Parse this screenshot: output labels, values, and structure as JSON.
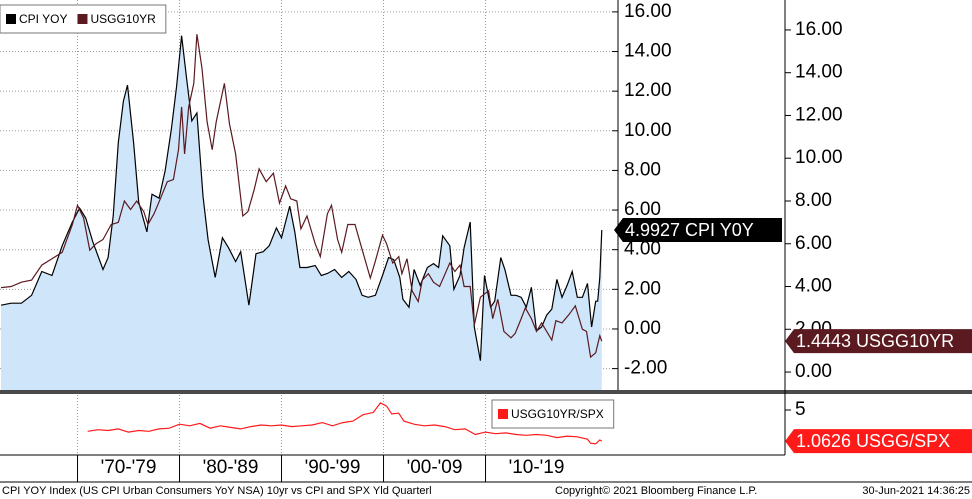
{
  "chart_data": [
    {
      "type": "line",
      "xlim": [
        1962.4,
        2022.4
      ],
      "ylim": [
        -3.08,
        16.6
      ],
      "y2lim": [
        -0.84,
        17.4
      ],
      "yticks": [
        {
          "value": 16,
          "label": "16.00"
        },
        {
          "value": 14,
          "label": "14.00"
        },
        {
          "value": 12,
          "label": "12.00"
        },
        {
          "value": 10,
          "label": "10.00"
        },
        {
          "value": 8,
          "label": "8.00"
        },
        {
          "value": 6,
          "label": "6.00"
        },
        {
          "value": 4,
          "label": "4.00"
        },
        {
          "value": 2,
          "label": "2.00"
        },
        {
          "value": 0,
          "label": "0.00"
        },
        {
          "value": -2,
          "label": "-2.00"
        }
      ],
      "y2ticks": [
        {
          "value": 16,
          "label": "16.00"
        },
        {
          "value": 14,
          "label": "14.00"
        },
        {
          "value": 12,
          "label": "12.00"
        },
        {
          "value": 10,
          "label": "10.00"
        },
        {
          "value": 8,
          "label": "8.00"
        },
        {
          "value": 6,
          "label": "6.00"
        },
        {
          "value": 4,
          "label": "4.00"
        },
        {
          "value": 2,
          "label": "2.00"
        },
        {
          "value": 0,
          "label": "0.00"
        }
      ],
      "grid": true,
      "legend": "top-left",
      "series": [
        {
          "name": "CPI YOY",
          "color": "#000000",
          "fill": "#cfe5fa",
          "tag": "4.9927 CPI Y0Y",
          "x": [
            1962.5,
            1963.5,
            1964.5,
            1965.5,
            1966.5,
            1967.5,
            1968.5,
            1969.5,
            1970.2,
            1970.8,
            1971.5,
            1972.5,
            1973.0,
            1973.5,
            1974.0,
            1974.5,
            1974.9,
            1975.5,
            1976.0,
            1976.8,
            1977.3,
            1978.0,
            1978.6,
            1979.2,
            1979.7,
            1980.2,
            1980.7,
            1981.2,
            1981.7,
            1982.3,
            1982.8,
            1983.5,
            1984.2,
            1984.8,
            1985.5,
            1986.0,
            1986.8,
            1987.5,
            1988.2,
            1988.8,
            1989.5,
            1990.0,
            1990.8,
            1991.3,
            1991.8,
            1992.5,
            1993.3,
            1993.9,
            1994.5,
            1995.2,
            1995.9,
            1996.6,
            1997.3,
            1997.9,
            1998.5,
            1999.2,
            1999.9,
            2000.5,
            2001.0,
            2001.6,
            2001.9,
            2002.5,
            2003.0,
            2003.6,
            2004.3,
            2004.9,
            2005.4,
            2005.8,
            2006.5,
            2006.9,
            2007.5,
            2007.9,
            2008.5,
            2008.9,
            2009.5,
            2009.9,
            2010.5,
            2010.9,
            2011.5,
            2011.9,
            2012.5,
            2013.0,
            2013.5,
            2014.0,
            2014.5,
            2015.0,
            2015.5,
            2016.0,
            2016.5,
            2017.0,
            2017.5,
            2018.0,
            2018.5,
            2019.0,
            2019.5,
            2020.0,
            2020.4,
            2020.8,
            2021.0,
            2021.2,
            2021.4
          ],
          "values": [
            1.2,
            1.3,
            1.3,
            1.7,
            2.9,
            2.7,
            4.2,
            5.4,
            6.1,
            5.6,
            4.4,
            3.0,
            3.6,
            5.7,
            9.4,
            11.5,
            12.3,
            9.4,
            6.4,
            4.9,
            6.8,
            6.6,
            8.0,
            10.1,
            12.2,
            14.8,
            12.6,
            10.5,
            10.9,
            6.7,
            4.5,
            2.6,
            4.6,
            4.1,
            3.4,
            3.9,
            1.2,
            3.8,
            3.9,
            4.2,
            5.1,
            4.6,
            6.2,
            4.9,
            3.1,
            3.1,
            3.2,
            2.7,
            2.8,
            3.0,
            2.6,
            2.9,
            2.5,
            1.7,
            1.6,
            1.7,
            2.7,
            3.6,
            3.5,
            2.6,
            1.5,
            1.1,
            3.0,
            2.2,
            3.1,
            3.3,
            3.1,
            4.7,
            4.2,
            2.0,
            2.7,
            4.1,
            5.4,
            0.1,
            -1.6,
            2.7,
            1.1,
            1.4,
            3.6,
            3.0,
            1.7,
            1.7,
            1.6,
            1.1,
            2.1,
            -0.1,
            0.1,
            0.7,
            1.0,
            2.5,
            1.6,
            2.2,
            2.9,
            1.6,
            1.6,
            2.3,
            0.1,
            1.4,
            1.4,
            2.6,
            4.9927
          ]
        },
        {
          "name": "USGG10YR",
          "color": "#5a1a20",
          "axis": "y2",
          "tag": "1.4443 USGG10YR",
          "x": [
            1962.5,
            1963.5,
            1964.5,
            1965.5,
            1966.5,
            1967.5,
            1968.5,
            1969.5,
            1970.0,
            1970.6,
            1971.2,
            1971.8,
            1972.5,
            1973.3,
            1974.0,
            1974.6,
            1975.2,
            1975.8,
            1976.5,
            1976.9,
            1977.5,
            1978.2,
            1978.8,
            1979.4,
            1979.9,
            1980.2,
            1980.5,
            1980.9,
            1981.4,
            1981.7,
            1982.2,
            1982.7,
            1983.2,
            1983.6,
            1984.4,
            1984.9,
            1985.5,
            1986.2,
            1986.7,
            1987.3,
            1987.8,
            1988.5,
            1989.2,
            1989.8,
            1990.4,
            1990.9,
            1991.5,
            1991.9,
            1992.5,
            1993.3,
            1993.8,
            1994.5,
            1994.9,
            1995.5,
            1995.9,
            1996.5,
            1997.2,
            1997.8,
            1998.7,
            1999.2,
            1999.9,
            2000.3,
            2000.9,
            2001.5,
            2001.8,
            2002.3,
            2002.8,
            2003.4,
            2003.8,
            2004.4,
            2004.9,
            2005.5,
            2006.5,
            2007.0,
            2007.5,
            2007.9,
            2008.5,
            2008.9,
            2009.5,
            2010.3,
            2010.7,
            2011.2,
            2011.8,
            2012.5,
            2012.9,
            2013.5,
            2013.9,
            2014.5,
            2015.0,
            2015.5,
            2016.5,
            2016.9,
            2017.5,
            2018.2,
            2018.8,
            2019.5,
            2019.9,
            2020.3,
            2020.8,
            2021.2,
            2021.4
          ],
          "values": [
            3.95,
            4.0,
            4.2,
            4.3,
            5.0,
            5.3,
            5.6,
            6.9,
            7.8,
            7.2,
            5.7,
            6.0,
            6.2,
            6.9,
            7.0,
            8.0,
            7.6,
            8.0,
            7.5,
            6.9,
            7.4,
            8.2,
            8.9,
            9.0,
            10.4,
            12.4,
            10.2,
            12.4,
            13.5,
            15.8,
            14.2,
            11.7,
            10.4,
            11.7,
            13.5,
            11.6,
            10.2,
            7.3,
            7.5,
            8.5,
            9.5,
            8.9,
            9.3,
            7.9,
            8.7,
            8.1,
            8.0,
            6.7,
            7.3,
            6.0,
            5.4,
            7.4,
            7.8,
            6.2,
            5.6,
            6.9,
            6.9,
            5.9,
            4.4,
            5.2,
            6.4,
            6.0,
            5.1,
            5.4,
            4.6,
            5.3,
            3.8,
            3.3,
            4.3,
            4.6,
            4.2,
            4.0,
            5.1,
            4.7,
            5.0,
            4.0,
            4.0,
            2.2,
            3.5,
            3.8,
            2.5,
            3.4,
            1.9,
            1.6,
            1.8,
            2.5,
            3.0,
            2.5,
            1.9,
            2.3,
            1.5,
            2.4,
            2.3,
            2.7,
            3.1,
            2.0,
            1.9,
            0.7,
            0.9,
            1.7,
            1.4443
          ]
        }
      ]
    },
    {
      "type": "line",
      "xlim": [
        1962.4,
        2022.4
      ],
      "ylim": [
        -0.7,
        6.9
      ],
      "yticks": [
        5
      ],
      "xticks": [
        {
          "value": 1970,
          "label": "'70-'79"
        },
        {
          "value": 1980,
          "label": "'80-'89"
        },
        {
          "value": 1990,
          "label": "'90-'99"
        },
        {
          "value": 2000,
          "label": "'00-'09"
        },
        {
          "value": 2010,
          "label": "'10-'19"
        }
      ],
      "grid": true,
      "legend": "top-right",
      "series": [
        {
          "name": "USGG10YR/SPX",
          "color": "#ff1a1a",
          "tag": "1.0626 USGG/SPX",
          "x": [
            1971,
            1972,
            1973,
            1974,
            1975,
            1976,
            1977,
            1978,
            1979,
            1980,
            1981,
            1982,
            1983,
            1984,
            1985,
            1986,
            1987,
            1988,
            1989,
            1990,
            1991,
            1992,
            1993,
            1994,
            1995,
            1996,
            1997,
            1998,
            1999,
            1999.7,
            2000.3,
            2000.8,
            2001.5,
            2002,
            2003,
            2004,
            2005,
            2006,
            2007,
            2008,
            2009,
            2010,
            2011,
            2012,
            2013,
            2014,
            2015,
            2016,
            2017,
            2018,
            2019,
            2020,
            2020.3,
            2020.8,
            2021.2,
            2021.4
          ],
          "values": [
            2.3,
            2.5,
            2.4,
            2.6,
            2.2,
            2.4,
            2.3,
            2.6,
            2.7,
            3.2,
            3.0,
            3.3,
            2.7,
            3.0,
            2.8,
            2.6,
            2.9,
            3.1,
            3.0,
            3.1,
            2.9,
            3.0,
            3.1,
            3.4,
            3.0,
            3.4,
            3.6,
            4.4,
            4.7,
            5.9,
            5.5,
            4.5,
            4.6,
            3.6,
            3.2,
            3.0,
            3.1,
            2.9,
            2.5,
            2.6,
            1.9,
            2.2,
            2.0,
            2.1,
            1.9,
            1.8,
            1.9,
            1.8,
            1.5,
            1.7,
            1.6,
            1.3,
            0.8,
            0.7,
            1.2,
            1.0626
          ]
        }
      ]
    }
  ],
  "footer": {
    "description": "CPI YOY Index (US CPI Urban Consumers YoY NSA) 10yr vs CPI and SPX Yld  Quarterl",
    "copyright": "Copyright© 2021 Bloomberg Finance L.P.",
    "timestamp": "30-Jun-2021 14:36:25"
  }
}
